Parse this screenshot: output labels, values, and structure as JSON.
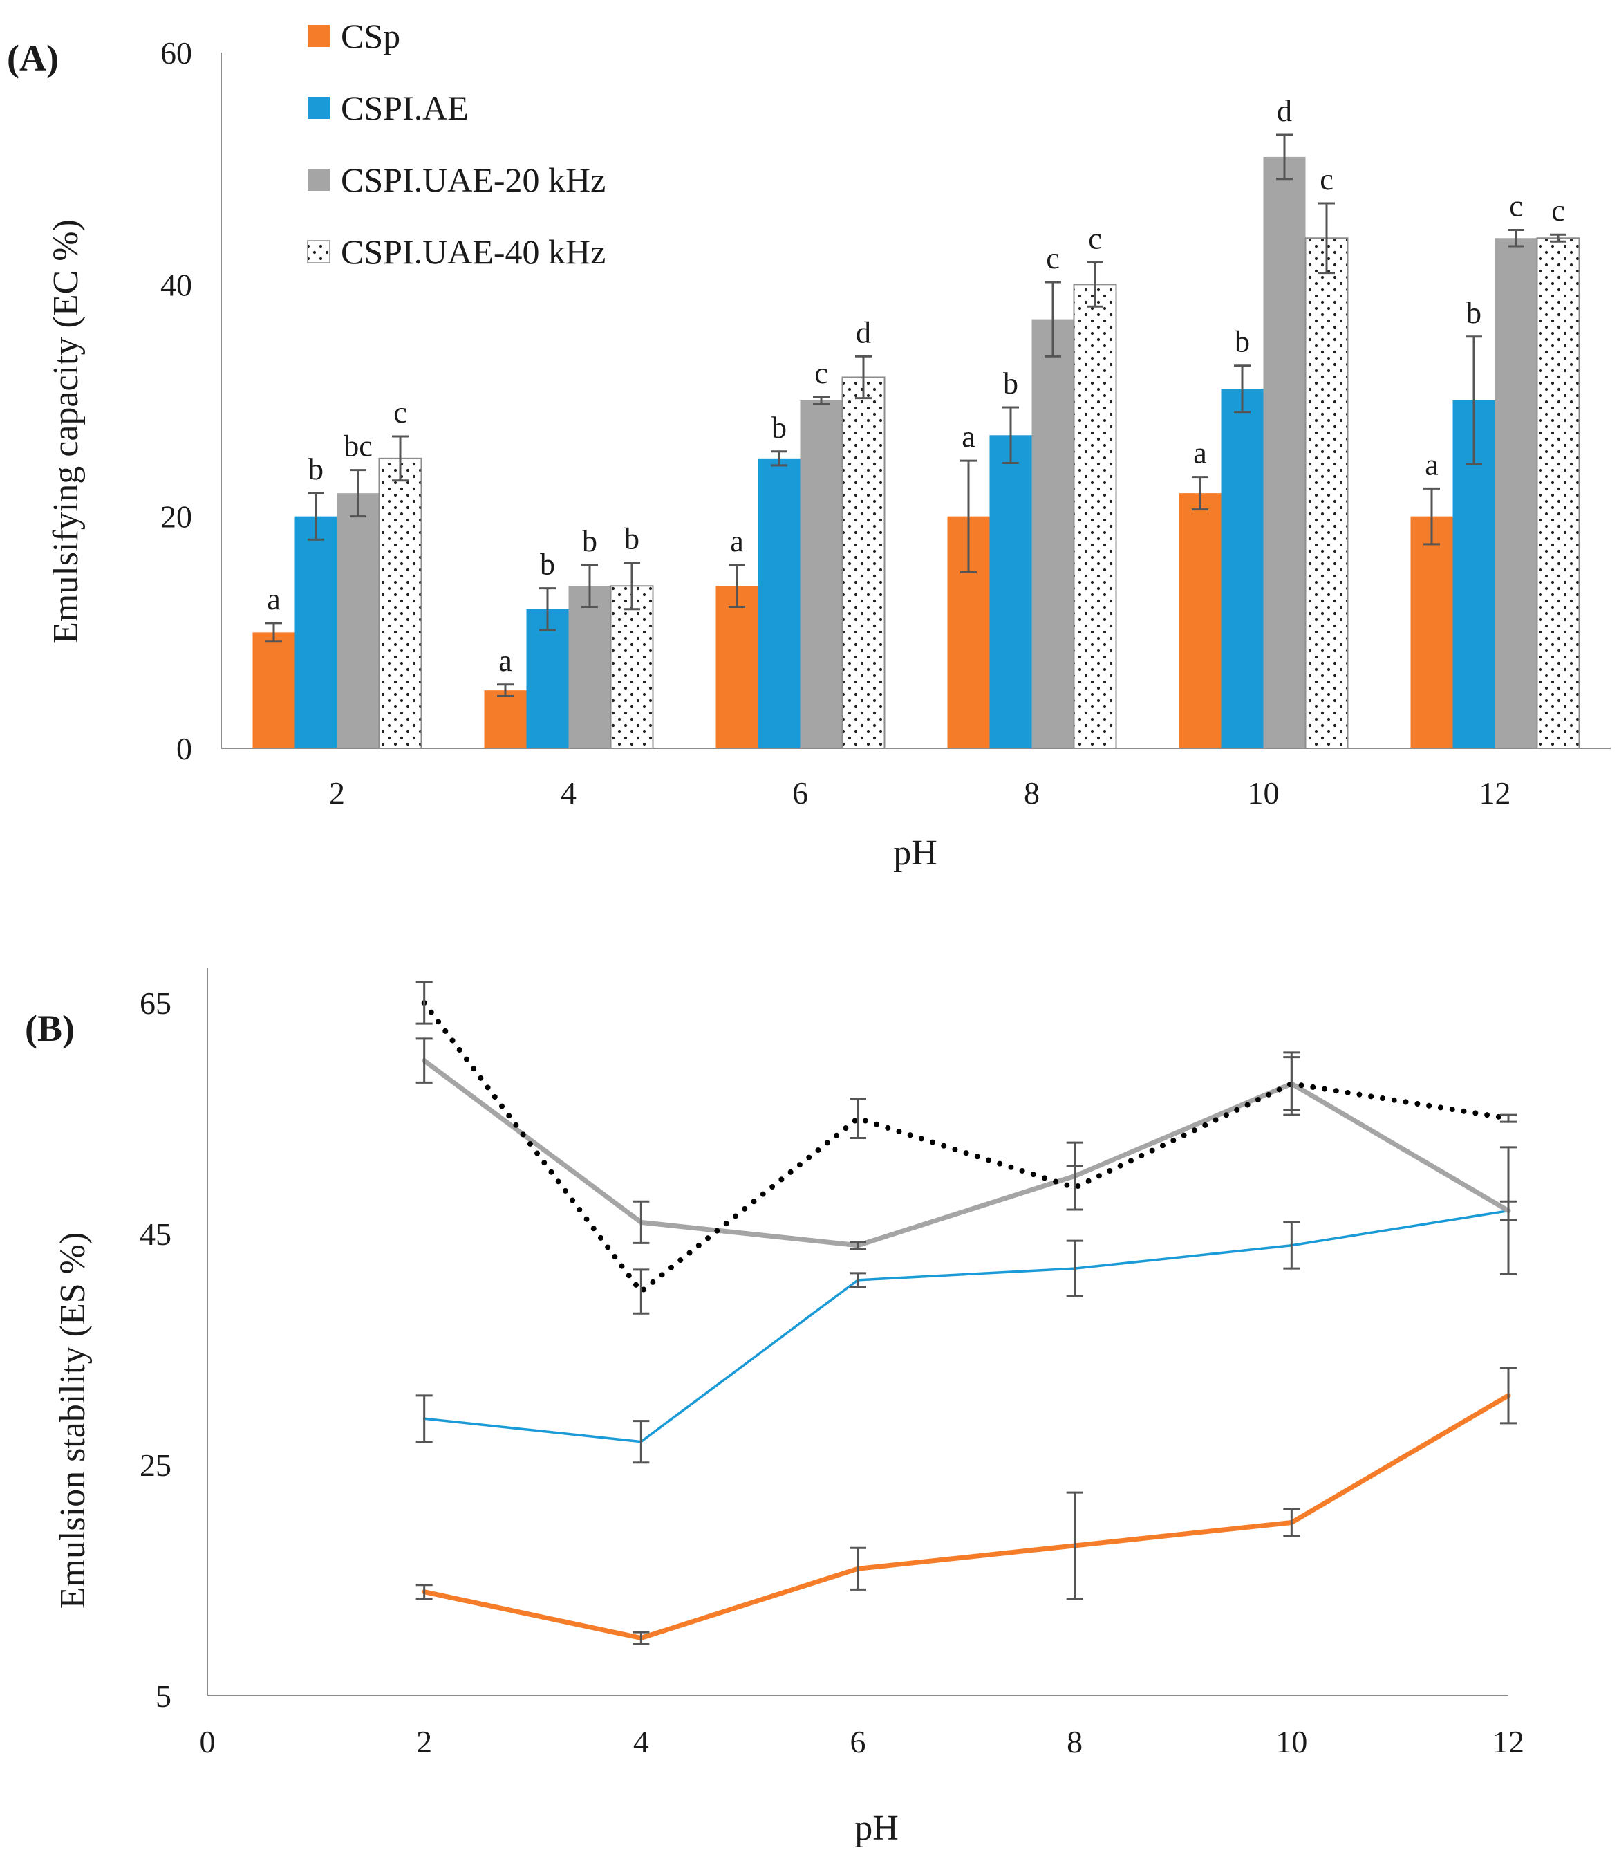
{
  "chart_data": [
    {
      "type": "bar",
      "panel_label": "(A)",
      "title": "",
      "xlabel": "pH",
      "ylabel": "Emulsifying capacity (EC %)",
      "categories": [
        "2",
        "4",
        "6",
        "8",
        "10",
        "12"
      ],
      "ylim": [
        0,
        60
      ],
      "yticks": [
        "0",
        "20",
        "40",
        "60"
      ],
      "grid": false,
      "legend_position": "top-left",
      "series": [
        {
          "name": "CSp",
          "color": "#f57c28",
          "pattern": "solid",
          "values": [
            10,
            5,
            14,
            20,
            22,
            20
          ],
          "errors": [
            0.8,
            0.5,
            1.8,
            4.8,
            1.4,
            2.4
          ],
          "letters": [
            "a",
            "a",
            "a",
            "a",
            "a",
            "a"
          ]
        },
        {
          "name": "CSPI.AE",
          "color": "#1a9ad6",
          "pattern": "solid",
          "values": [
            20,
            12,
            25,
            27,
            31,
            30
          ],
          "errors": [
            2.0,
            1.8,
            0.6,
            2.4,
            2.0,
            5.5
          ],
          "letters": [
            "b",
            "b",
            "b",
            "b",
            "b",
            "b"
          ]
        },
        {
          "name": "CSPI.UAE-20 kHz",
          "color": "#a5a5a5",
          "pattern": "solid",
          "values": [
            22,
            14,
            30,
            37,
            51,
            44
          ],
          "errors": [
            2.0,
            1.8,
            0.3,
            3.2,
            1.9,
            0.7
          ],
          "letters": [
            "bc",
            "b",
            "c",
            "c",
            "d",
            "c"
          ]
        },
        {
          "name": "CSPI.UAE-40 kHz",
          "color": "#ffffff",
          "pattern": "dots",
          "values": [
            25,
            14,
            32,
            40,
            44,
            44
          ],
          "errors": [
            1.9,
            2.0,
            1.8,
            1.9,
            3.0,
            0.3
          ],
          "letters": [
            "c",
            "b",
            "d",
            "c",
            "c",
            "c"
          ]
        }
      ]
    },
    {
      "type": "line",
      "panel_label": "(B)",
      "title": "",
      "xlabel": "pH",
      "ylabel": "Emulsion stability (ES %)",
      "x": [
        2,
        4,
        6,
        8,
        10,
        12
      ],
      "xlim": [
        0,
        12
      ],
      "xticks": [
        "0",
        "2",
        "4",
        "6",
        "8",
        "10",
        "12"
      ],
      "ylim": [
        5,
        68
      ],
      "yticks": [
        "5",
        "25",
        "45",
        "65"
      ],
      "grid": false,
      "series": [
        {
          "name": "CSp",
          "color": "#f57c28",
          "style": "solid",
          "values": [
            14,
            10,
            16,
            18,
            20,
            31
          ],
          "errors": [
            0.6,
            0.5,
            1.8,
            4.6,
            1.2,
            2.4
          ]
        },
        {
          "name": "CSPI.AE",
          "color": "#1a9ad6",
          "style": "solid",
          "values": [
            29,
            27,
            41,
            42,
            44,
            47
          ],
          "errors": [
            2.0,
            1.8,
            0.6,
            2.4,
            2.0,
            5.5
          ]
        },
        {
          "name": "CSPI.UAE-20 kHz",
          "color": "#a5a5a5",
          "style": "solid",
          "values": [
            60,
            46,
            44,
            50,
            58,
            47
          ],
          "errors": [
            1.9,
            1.8,
            0.3,
            2.9,
            2.3,
            0.8
          ]
        },
        {
          "name": "CSPI.UAE-40 kHz",
          "color": "#000000",
          "style": "dotted",
          "values": [
            65,
            40,
            55,
            49,
            58,
            55
          ],
          "errors": [
            1.8,
            1.9,
            1.7,
            1.9,
            2.7,
            0.3
          ]
        }
      ]
    }
  ]
}
